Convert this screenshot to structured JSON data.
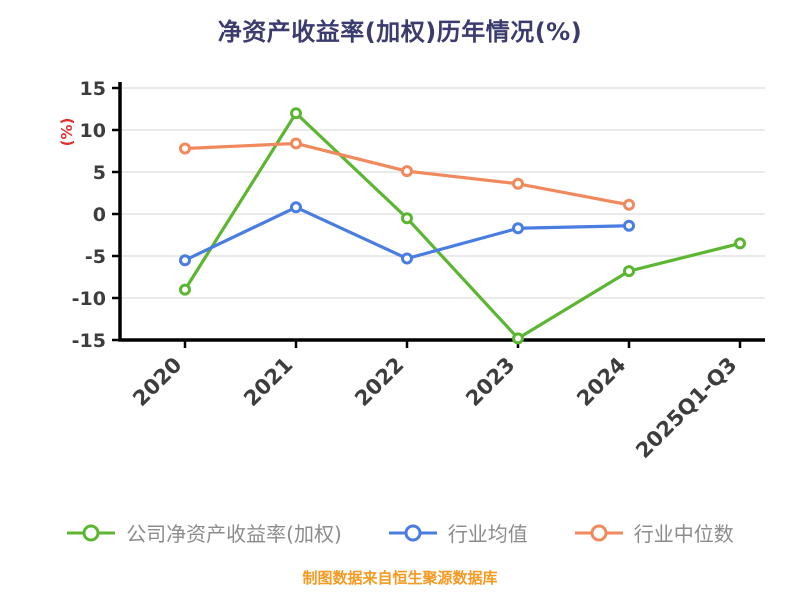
{
  "title": "净资产收益率(加权)历年情况(%)",
  "footer": "制图数据来自恒生聚源数据库",
  "chart_data": {
    "type": "line",
    "title": "净资产收益率(加权)历年情况(%)",
    "ylabel": "(%)",
    "xlabel": "",
    "categories": [
      "2020",
      "2021",
      "2022",
      "2023",
      "2024",
      "2025Q1-Q3"
    ],
    "y_ticks": [
      15,
      10,
      5,
      0,
      -5,
      -10,
      -15
    ],
    "ylim": [
      -15,
      15
    ],
    "grid": true,
    "legend_position": "bottom",
    "series": [
      {
        "name": "公司净资产收益率(加权)",
        "color": "#5CB632",
        "values": [
          -9.0,
          12.0,
          -0.5,
          -14.8,
          -6.8,
          -3.5
        ]
      },
      {
        "name": "行业均值",
        "color": "#4A7DE2",
        "values": [
          -5.5,
          0.8,
          -5.3,
          -1.7,
          -1.4,
          null
        ]
      },
      {
        "name": "行业中位数",
        "color": "#F08A5D",
        "values": [
          7.8,
          8.4,
          5.1,
          3.6,
          1.1,
          null
        ]
      }
    ],
    "source_note": "制图数据来自恒生聚源数据库"
  },
  "colors": {
    "title": "#3B3B6E",
    "axis": "#000000",
    "grid": "#E4E4E4",
    "tick_label": "#3D3D3D",
    "ylabel": "#E03030",
    "legend_text": "#8C8C8C",
    "footer": "#F59A23",
    "background": "#FFFFFF"
  }
}
